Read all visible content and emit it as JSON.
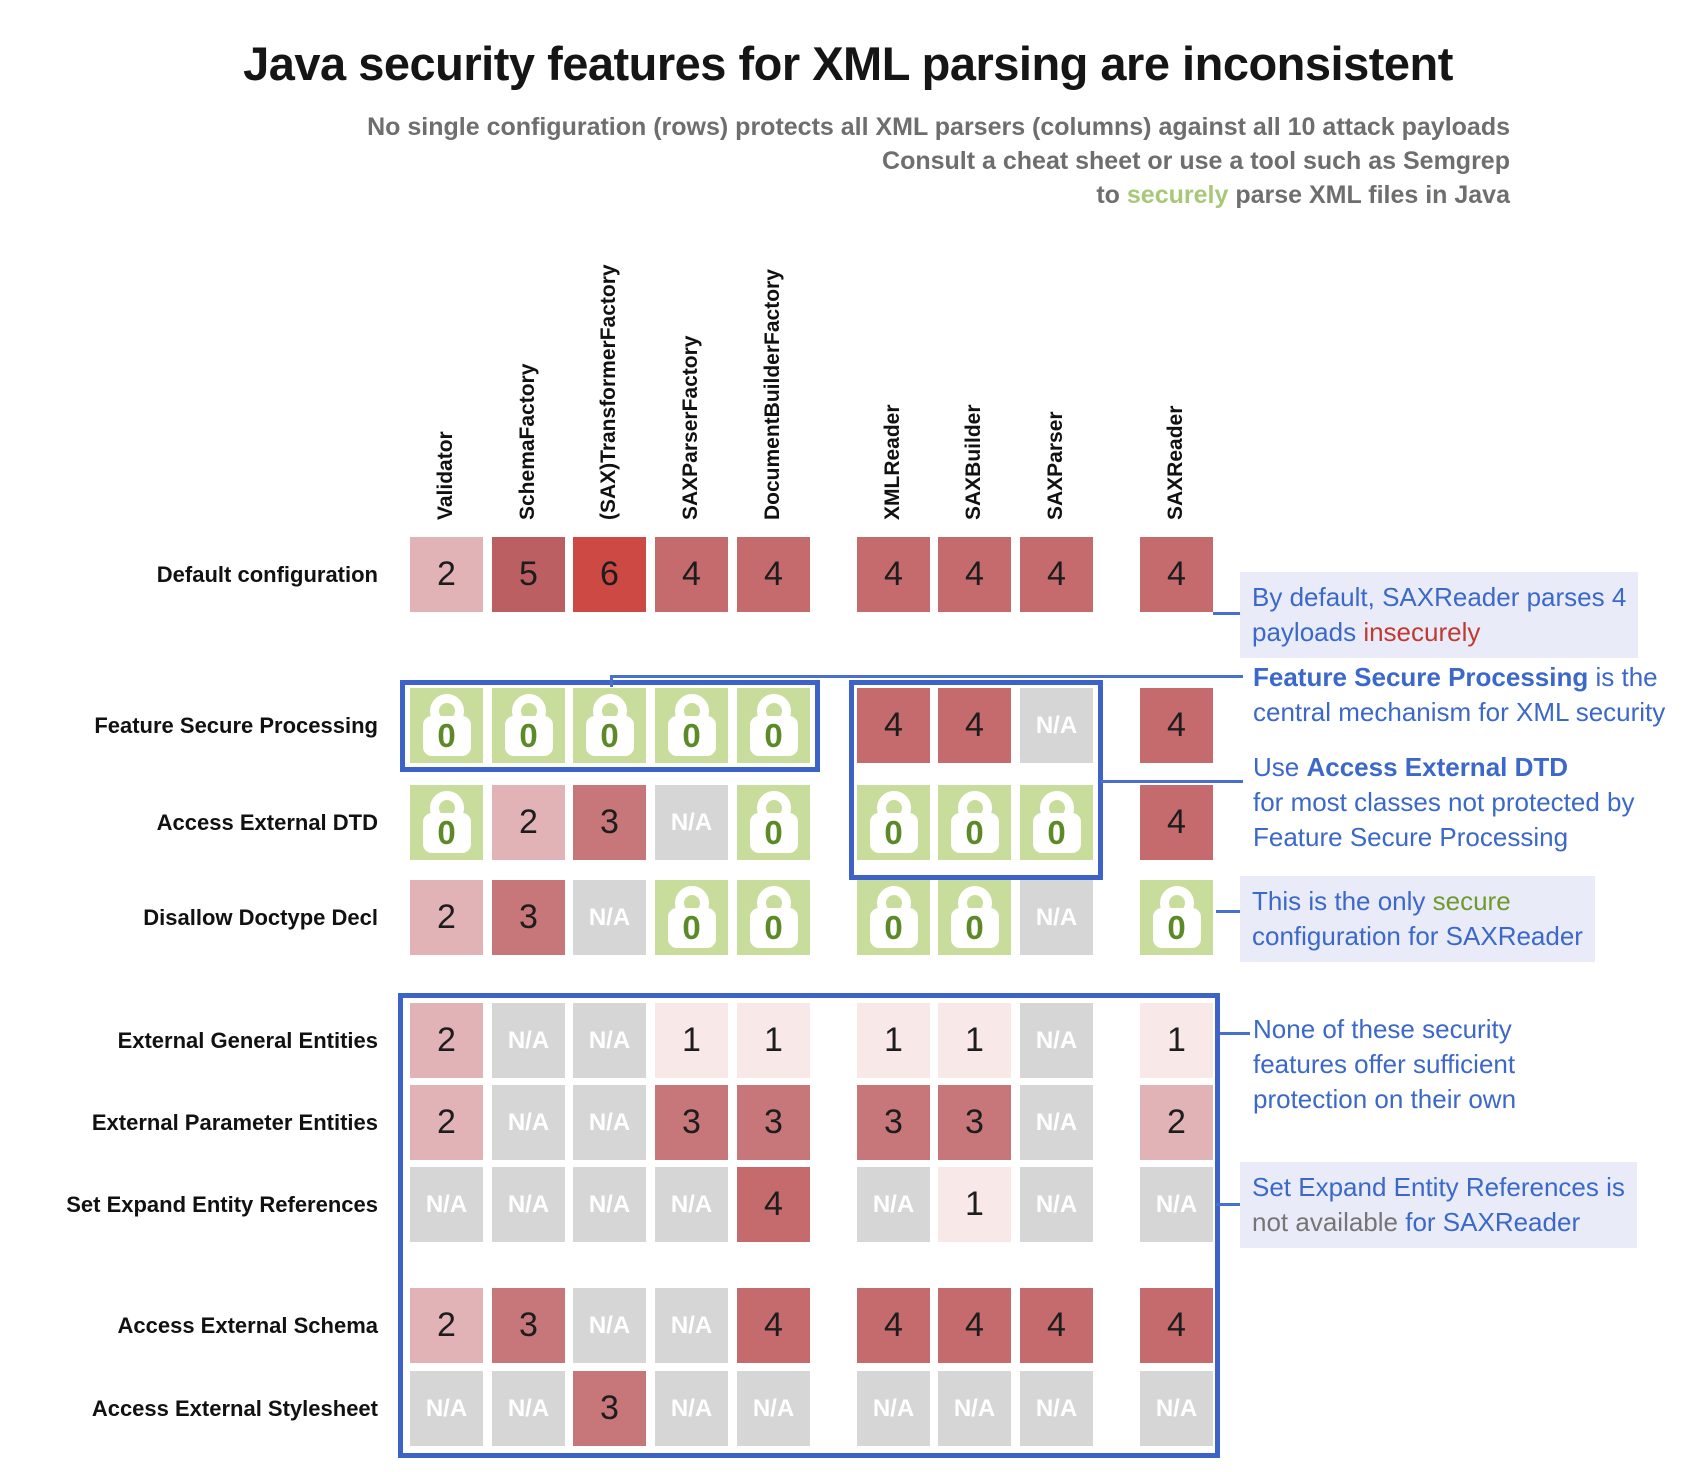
{
  "title": "Java security features for XML parsing are inconsistent",
  "subtitle": {
    "line1": "No single configuration (rows) protects all XML parsers (columns) against all 10 attack payloads",
    "line2": "Consult a cheat sheet or use a tool such as Semgrep",
    "line3_prefix": "to ",
    "line3_green": "securely",
    "line3_suffix": " parse XML files in Java"
  },
  "na_label": "N/A",
  "lock_label": "0",
  "chart_data": {
    "type": "heatmap",
    "title": "Java security features for XML parsing are inconsistent",
    "columns": [
      "Validator",
      "SchemaFactory",
      "(SAX)TransformerFactory",
      "SAXParserFactory",
      "DocumentBuilderFactory",
      "XMLReader",
      "SAXBuilder",
      "SAXParser",
      "SAXReader"
    ],
    "column_groups": [
      [
        0,
        1,
        2,
        3,
        4
      ],
      [
        5,
        6,
        7
      ],
      [
        8
      ]
    ],
    "rows": [
      "Default configuration",
      "Feature Secure Processing",
      "Access External DTD",
      "Disallow Doctype Decl",
      "External General Entities",
      "External Parameter Entities",
      "Set Expand Entity References",
      "Access External Schema",
      "Access External Stylesheet"
    ],
    "values": [
      [
        2,
        5,
        6,
        4,
        4,
        4,
        4,
        4,
        4
      ],
      [
        0,
        0,
        0,
        0,
        0,
        4,
        4,
        null,
        4
      ],
      [
        0,
        2,
        3,
        null,
        0,
        0,
        0,
        0,
        4
      ],
      [
        2,
        3,
        null,
        0,
        0,
        0,
        0,
        null,
        0
      ],
      [
        2,
        null,
        null,
        1,
        1,
        1,
        1,
        null,
        1
      ],
      [
        2,
        null,
        null,
        3,
        3,
        3,
        3,
        null,
        2
      ],
      [
        null,
        null,
        null,
        null,
        4,
        null,
        1,
        null,
        null
      ],
      [
        2,
        3,
        null,
        null,
        4,
        4,
        4,
        4,
        4
      ],
      [
        null,
        null,
        3,
        null,
        null,
        null,
        null,
        null,
        null
      ]
    ],
    "value_meaning": "number of 10 attack payloads parsed insecurely; 0 with lock icon = secure; null = N/A",
    "palette": {
      "0": "#c8dd9b",
      "1": "#f8e8e8",
      "2": "#e2b3b6",
      "3": "#c77679",
      "4": "#c56b6d",
      "5": "#bb5f62",
      "6": "#cc4944",
      "na": "#d6d6d6",
      "lock_zero_text": "#5d8a28"
    }
  },
  "annotations": [
    {
      "lines": [
        [
          {
            "t": "By default, SAXReader parses 4",
            "s": "blue"
          }
        ],
        [
          {
            "t": "payloads ",
            "s": "blue"
          },
          {
            "t": "insecurely",
            "s": "red"
          }
        ]
      ]
    },
    {
      "lines": [
        [
          {
            "t": "Feature Secure Processing",
            "s": "blue-bold"
          },
          {
            "t": " is the",
            "s": "blue"
          }
        ],
        [
          {
            "t": "central mechanism for XML security",
            "s": "blue"
          }
        ]
      ]
    },
    {
      "lines": [
        [
          {
            "t": "Use ",
            "s": "blue"
          },
          {
            "t": "Access External DTD",
            "s": "blue-bold"
          }
        ],
        [
          {
            "t": "for most classes not protected by",
            "s": "blue"
          }
        ],
        [
          {
            "t": "Feature Secure Processing",
            "s": "blue"
          }
        ]
      ]
    },
    {
      "lines": [
        [
          {
            "t": "This is the only ",
            "s": "blue"
          },
          {
            "t": "secure",
            "s": "green"
          }
        ],
        [
          {
            "t": "configuration for SAXReader",
            "s": "blue"
          }
        ]
      ]
    },
    {
      "lines": [
        [
          {
            "t": "None of these security",
            "s": "blue"
          }
        ],
        [
          {
            "t": "features offer sufficient",
            "s": "blue"
          }
        ],
        [
          {
            "t": "protection on their own",
            "s": "blue"
          }
        ]
      ]
    },
    {
      "lines": [
        [
          {
            "t": "Set Expand Entity References is",
            "s": "blue"
          }
        ],
        [
          {
            "t": "not available ",
            "s": "gray"
          },
          {
            "t": "for SAXReader",
            "s": "blue"
          }
        ]
      ]
    }
  ],
  "accent": {
    "box_border": "#3e63c8",
    "connector": "#4a70cf",
    "annotation_blue": "#3b68c9",
    "annotation_red": "#c03a2f",
    "annotation_green": "#709a2d",
    "annotation_gray": "#757575",
    "annotation_highlight_bg": "#e9ecf8",
    "subtitle_gray": "#6e6e6e",
    "subtitle_green": "#a8c878"
  }
}
